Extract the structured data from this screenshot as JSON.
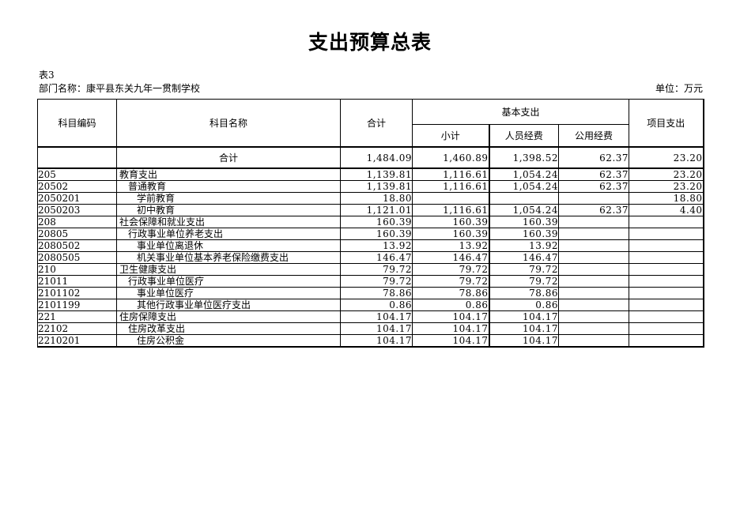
{
  "page": {
    "title": "支出预算总表",
    "table_label": "表3",
    "department_label": "部门名称：康平县东关九年一贯制学校",
    "unit_label": "单位：万元"
  },
  "table": {
    "headers": {
      "subject_code": "科目编码",
      "subject_name": "科目名称",
      "total": "合计",
      "basic_expenditure": "基本支出",
      "subtotal": "小计",
      "personnel_funds": "人员经费",
      "public_funds": "公用经费",
      "project_expenditure": "项目支出"
    },
    "total_row": {
      "code": "",
      "name": "合计",
      "total": "1,484.09",
      "subtotal": "1,460.89",
      "personnel": "1,398.52",
      "public": "62.37",
      "project": "23.20"
    },
    "rows": [
      {
        "code": "205",
        "name": "教育支出",
        "indent": 0,
        "total": "1,139.81",
        "subtotal": "1,116.61",
        "personnel": "1,054.24",
        "public": "62.37",
        "project": "23.20"
      },
      {
        "code": "20502",
        "name": "普通教育",
        "indent": 1,
        "total": "1,139.81",
        "subtotal": "1,116.61",
        "personnel": "1,054.24",
        "public": "62.37",
        "project": "23.20"
      },
      {
        "code": "2050201",
        "name": "学前教育",
        "indent": 2,
        "total": "18.80",
        "subtotal": "",
        "personnel": "",
        "public": "",
        "project": "18.80"
      },
      {
        "code": "2050203",
        "name": "初中教育",
        "indent": 2,
        "total": "1,121.01",
        "subtotal": "1,116.61",
        "personnel": "1,054.24",
        "public": "62.37",
        "project": "4.40"
      },
      {
        "code": "208",
        "name": "社会保障和就业支出",
        "indent": 0,
        "total": "160.39",
        "subtotal": "160.39",
        "personnel": "160.39",
        "public": "",
        "project": ""
      },
      {
        "code": "20805",
        "name": "行政事业单位养老支出",
        "indent": 1,
        "total": "160.39",
        "subtotal": "160.39",
        "personnel": "160.39",
        "public": "",
        "project": ""
      },
      {
        "code": "2080502",
        "name": "事业单位离退休",
        "indent": 2,
        "total": "13.92",
        "subtotal": "13.92",
        "personnel": "13.92",
        "public": "",
        "project": ""
      },
      {
        "code": "2080505",
        "name": "机关事业单位基本养老保险缴费支出",
        "indent": 2,
        "total": "146.47",
        "subtotal": "146.47",
        "personnel": "146.47",
        "public": "",
        "project": ""
      },
      {
        "code": "210",
        "name": "卫生健康支出",
        "indent": 0,
        "total": "79.72",
        "subtotal": "79.72",
        "personnel": "79.72",
        "public": "",
        "project": ""
      },
      {
        "code": "21011",
        "name": "行政事业单位医疗",
        "indent": 1,
        "total": "79.72",
        "subtotal": "79.72",
        "personnel": "79.72",
        "public": "",
        "project": ""
      },
      {
        "code": "2101102",
        "name": "事业单位医疗",
        "indent": 2,
        "total": "78.86",
        "subtotal": "78.86",
        "personnel": "78.86",
        "public": "",
        "project": ""
      },
      {
        "code": "2101199",
        "name": "其他行政事业单位医疗支出",
        "indent": 2,
        "total": "0.86",
        "subtotal": "0.86",
        "personnel": "0.86",
        "public": "",
        "project": ""
      },
      {
        "code": "221",
        "name": "住房保障支出",
        "indent": 0,
        "total": "104.17",
        "subtotal": "104.17",
        "personnel": "104.17",
        "public": "",
        "project": ""
      },
      {
        "code": "22102",
        "name": "住房改革支出",
        "indent": 1,
        "total": "104.17",
        "subtotal": "104.17",
        "personnel": "104.17",
        "public": "",
        "project": ""
      },
      {
        "code": "2210201",
        "name": "住房公积金",
        "indent": 2,
        "total": "104.17",
        "subtotal": "104.17",
        "personnel": "104.17",
        "public": "",
        "project": ""
      }
    ]
  },
  "colors": {
    "text": "#000000",
    "border": "#000000",
    "background": "#ffffff"
  }
}
